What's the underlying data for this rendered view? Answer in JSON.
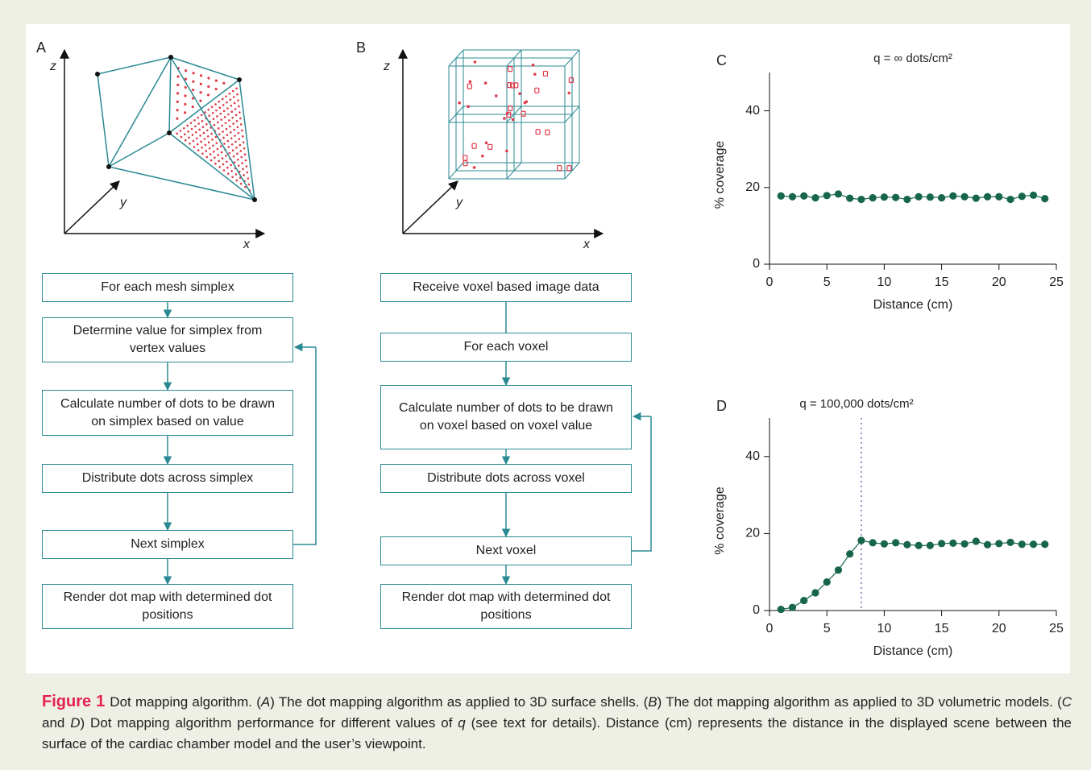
{
  "panel_a": {
    "label": "A",
    "axis_labels": {
      "z": "z",
      "y": "y",
      "x": "x"
    },
    "steps": [
      "For each mesh simplex",
      "Determine value for simplex from vertex values",
      "Calculate number of dots to be drawn on simplex based on value",
      "Distribute dots across simplex",
      "Next simplex",
      "Render dot map with determined dot positions"
    ]
  },
  "panel_b": {
    "label": "B",
    "axis_labels": {
      "z": "z",
      "y": "y",
      "x": "x"
    },
    "steps": [
      "Receive voxel based image data",
      "For each voxel",
      "Calculate number of dots to be drawn on voxel based on voxel value",
      "Distribute dots across voxel",
      "Next voxel",
      "Render dot map with determined dot positions"
    ]
  },
  "chart_data": [
    {
      "type": "line",
      "panel_label": "C",
      "title": "q = ∞ dots/cm²",
      "xlabel": "Distance (cm)",
      "ylabel": "% coverage",
      "x": [
        1,
        2,
        3,
        4,
        5,
        6,
        7,
        8,
        9,
        10,
        11,
        12,
        13,
        14,
        15,
        16,
        17,
        18,
        19,
        20,
        21,
        22,
        23,
        24
      ],
      "values": [
        17.8,
        17.6,
        17.8,
        17.3,
        17.9,
        18.3,
        17.2,
        16.9,
        17.3,
        17.5,
        17.4,
        16.9,
        17.6,
        17.5,
        17.3,
        17.8,
        17.6,
        17.2,
        17.6,
        17.6,
        16.9,
        17.7,
        18.0,
        17.1
      ],
      "color": "#17664a",
      "xlim": [
        0,
        25
      ],
      "xticks": [
        0,
        5,
        10,
        15,
        20,
        25
      ],
      "ylim": [
        0,
        50
      ],
      "yticks": [
        0,
        20,
        40
      ]
    },
    {
      "type": "line",
      "panel_label": "D",
      "title": "q = 100,000 dots/cm²",
      "xlabel": "Distance (cm)",
      "ylabel": "% coverage",
      "x": [
        1,
        2,
        3,
        4,
        5,
        6,
        7,
        8,
        9,
        10,
        11,
        12,
        13,
        14,
        15,
        16,
        17,
        18,
        19,
        20,
        21,
        22,
        23,
        24
      ],
      "values": [
        0.3,
        0.8,
        2.6,
        4.6,
        7.4,
        10.5,
        14.7,
        18.2,
        17.6,
        17.3,
        17.6,
        17.1,
        16.9,
        16.9,
        17.4,
        17.5,
        17.3,
        18.0,
        17.1,
        17.4,
        17.7,
        17.2,
        17.2,
        17.2
      ],
      "color": "#17664a",
      "reference_x": 8,
      "xlim": [
        0,
        25
      ],
      "xticks": [
        0,
        5,
        10,
        15,
        20,
        25
      ],
      "ylim": [
        0,
        50
      ],
      "yticks": [
        0,
        20,
        40
      ]
    }
  ],
  "caption": {
    "label": "Figure 1",
    "segments": [
      "Dot mapping algorithm. (",
      "A",
      ") The dot mapping algorithm as applied to 3D surface shells. (",
      "B",
      ") The dot mapping algorithm as applied to 3D volumetric models. (",
      "C",
      " and ",
      "D",
      ") Dot mapping algorithm performance for different values of ",
      "q",
      " (see text for details). Distance (cm) represents the distance in the displayed scene between the surface of the cardiac chamber model and the user’s viewpoint."
    ]
  }
}
